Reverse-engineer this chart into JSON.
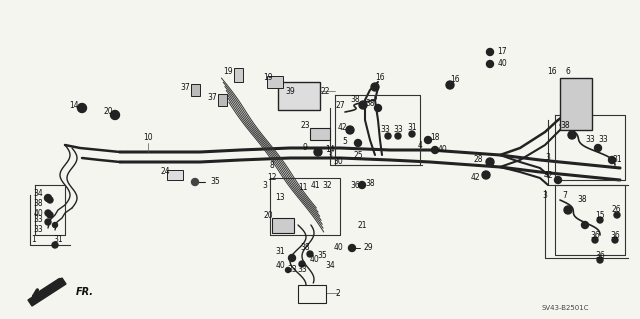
{
  "diagram_code": "SV43-B2501C",
  "background_color": "#f5f5f0",
  "line_color": "#222222",
  "figsize": [
    6.4,
    3.19
  ],
  "dpi": 100,
  "arrow_label": "FR.",
  "pipes": {
    "main_top": {
      "color": "#333333",
      "lw": 2.5
    },
    "main_bot": {
      "color": "#333333",
      "lw": 2.5
    },
    "thin": {
      "color": "#333333",
      "lw": 1.0
    },
    "bundle": {
      "color": "#333333",
      "lw": 0.7
    }
  }
}
